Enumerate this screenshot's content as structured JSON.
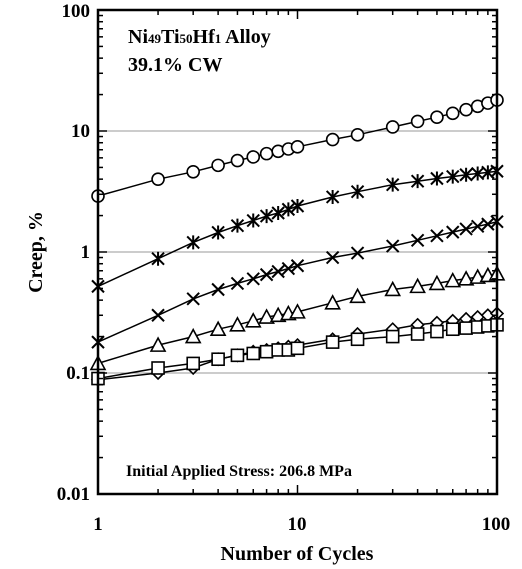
{
  "chart_data": {
    "type": "scatter",
    "title": "",
    "annotations": {
      "alloy_parts": [
        "Ni",
        "49",
        "Ti",
        "50",
        "Hf",
        "1",
        " Alloy"
      ],
      "cold_work": "39.1% CW",
      "stress": "Initial Applied Stress: 206.8 MPa"
    },
    "xlabel": "Number of Cycles",
    "ylabel": "Creep, %",
    "xscale": "log",
    "yscale": "log",
    "xlim": [
      1,
      100
    ],
    "ylim": [
      0.01,
      100
    ],
    "x_tick_labels": [
      "1",
      "10",
      "100"
    ],
    "y_tick_labels": [
      "0.01",
      "0.1",
      "1",
      "10",
      "100"
    ],
    "grid": "horizontal major lines",
    "legend": "none",
    "series": [
      {
        "marker": "circle",
        "x": [
          1,
          2,
          3,
          4,
          5,
          6,
          7,
          8,
          9,
          10,
          15,
          20,
          30,
          40,
          50,
          60,
          70,
          80,
          90,
          100
        ],
        "y": [
          2.9,
          4.0,
          4.6,
          5.2,
          5.7,
          6.1,
          6.5,
          6.8,
          7.1,
          7.4,
          8.5,
          9.3,
          10.8,
          12.0,
          13.0,
          14.0,
          15.0,
          16.0,
          17.0,
          18.0
        ]
      },
      {
        "marker": "asterisk",
        "x": [
          1,
          2,
          3,
          4,
          5,
          6,
          7,
          8,
          9,
          10,
          15,
          20,
          30,
          40,
          50,
          60,
          70,
          80,
          90,
          100
        ],
        "y": [
          0.52,
          0.88,
          1.2,
          1.45,
          1.65,
          1.82,
          1.98,
          2.1,
          2.25,
          2.4,
          2.85,
          3.15,
          3.6,
          3.85,
          4.05,
          4.2,
          4.35,
          4.45,
          4.55,
          4.65
        ]
      },
      {
        "marker": "x",
        "x": [
          1,
          2,
          3,
          4,
          5,
          6,
          7,
          8,
          9,
          10,
          15,
          20,
          30,
          40,
          50,
          60,
          70,
          80,
          90,
          100
        ],
        "y": [
          0.18,
          0.3,
          0.41,
          0.49,
          0.55,
          0.6,
          0.65,
          0.69,
          0.73,
          0.77,
          0.9,
          0.98,
          1.12,
          1.25,
          1.36,
          1.46,
          1.55,
          1.63,
          1.7,
          1.78
        ]
      },
      {
        "marker": "triangle",
        "x": [
          1,
          2,
          3,
          4,
          5,
          6,
          7,
          8,
          9,
          10,
          15,
          20,
          30,
          40,
          50,
          60,
          70,
          80,
          90,
          100
        ],
        "y": [
          0.12,
          0.17,
          0.2,
          0.23,
          0.25,
          0.27,
          0.29,
          0.3,
          0.31,
          0.32,
          0.38,
          0.43,
          0.49,
          0.52,
          0.55,
          0.58,
          0.6,
          0.62,
          0.64,
          0.66
        ]
      },
      {
        "marker": "diamond",
        "x": [
          1,
          2,
          3,
          4,
          5,
          6,
          7,
          8,
          9,
          10,
          15,
          20,
          30,
          40,
          50,
          60,
          70,
          80,
          90,
          100
        ],
        "y": [
          0.088,
          0.1,
          0.11,
          0.13,
          0.14,
          0.15,
          0.155,
          0.16,
          0.165,
          0.17,
          0.19,
          0.21,
          0.23,
          0.25,
          0.26,
          0.27,
          0.28,
          0.29,
          0.3,
          0.31
        ]
      },
      {
        "marker": "square",
        "x": [
          1,
          2,
          3,
          4,
          5,
          6,
          7,
          8,
          9,
          10,
          15,
          20,
          30,
          40,
          50,
          60,
          70,
          80,
          90,
          100
        ],
        "y": [
          0.09,
          0.11,
          0.12,
          0.13,
          0.14,
          0.145,
          0.15,
          0.155,
          0.155,
          0.16,
          0.18,
          0.19,
          0.2,
          0.21,
          0.22,
          0.23,
          0.235,
          0.24,
          0.245,
          0.25
        ]
      }
    ]
  }
}
